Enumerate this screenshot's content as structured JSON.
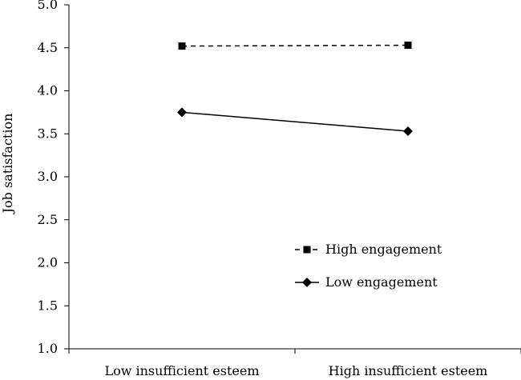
{
  "chart_data": {
    "type": "line",
    "title": "",
    "xlabel": "",
    "ylabel": "Job satisfaction",
    "categories": [
      "Low insufficient esteem",
      "High insufficient esteem"
    ],
    "ylim": [
      1.0,
      5.0
    ],
    "yticks": [
      "1.0",
      "1.5",
      "2.0",
      "2.5",
      "3.0",
      "3.5",
      "4.0",
      "4.5",
      "5.0"
    ],
    "grid": false,
    "legend_position": "lower-right",
    "series": [
      {
        "name": "High engagement",
        "values": [
          4.52,
          4.53
        ],
        "line_style": "dashed",
        "marker": "square",
        "color": "#000000"
      },
      {
        "name": "Low engagement",
        "values": [
          3.75,
          3.53
        ],
        "line_style": "solid",
        "marker": "diamond",
        "color": "#000000"
      }
    ]
  }
}
